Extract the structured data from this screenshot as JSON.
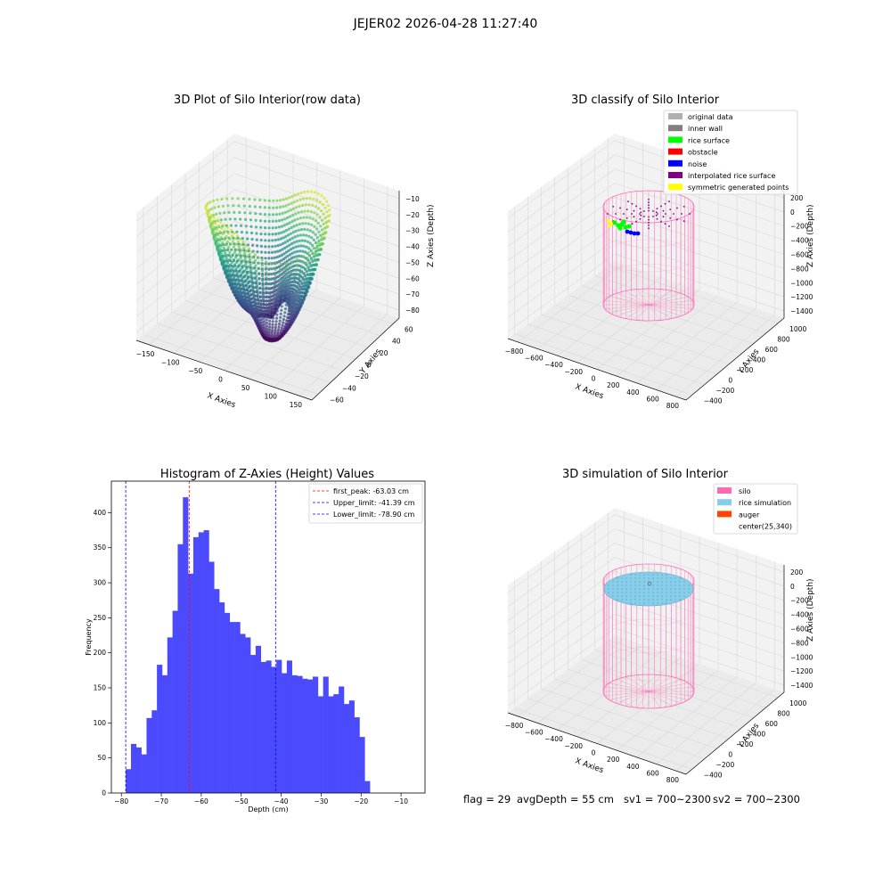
{
  "figure": {
    "suptitle": "JEJER02 2026-04-28 11:27:40",
    "footer": {
      "flag": "flag = 29",
      "avg_depth": "avgDepth = 55 cm",
      "sv1": "sv1 = 700~2300",
      "sv2": "sv2 = 700~2300"
    }
  },
  "colors": {
    "hist_bar": "#4b4bfd",
    "peak_line": "#ff0000",
    "limit_line": "#0000ff",
    "pane": "#f2f2f2",
    "grid": "#d9d9d9",
    "silo": "#ff69b4",
    "rice_sim": "#87ceeb",
    "auger": "#ff4500",
    "original": "#b0b0b0",
    "inner_wall": "#808080",
    "rice_surface": "#00ff00",
    "obstacle": "#ff0000",
    "noise": "#0000ff",
    "interp": "#800080",
    "symmetric": "#ffff00"
  },
  "chart_data": [
    {
      "type": "scatter",
      "projection": "3d",
      "title": "3D Plot of Silo Interior(row data)",
      "xlabel": "X Axies",
      "ylabel": "Y Axies",
      "zlabel": "Z Axies (Depth)",
      "xticks": [
        "−150",
        "−100",
        "−50",
        "0",
        "50",
        "100",
        "150"
      ],
      "yticks": [
        "−60",
        "−40",
        "−20",
        "0",
        "20",
        "40",
        "60"
      ],
      "zticks": [
        "−10",
        "−20",
        "−30",
        "−40",
        "−50",
        "−60",
        "−70",
        "−80"
      ],
      "xlim": [
        -160,
        160
      ],
      "ylim": [
        -65,
        65
      ],
      "zlim": [
        -85,
        -5
      ],
      "colormap": "viridis",
      "color_by": "z"
    },
    {
      "type": "scatter",
      "projection": "3d",
      "title": "3D classify of Silo Interior",
      "xlabel": "X Axies",
      "ylabel": "Y Axies",
      "zlabel": "Z Axies (Depth)",
      "xticks": [
        "−800",
        "−600",
        "−400",
        "−200",
        "0",
        "200",
        "400",
        "600",
        "800"
      ],
      "yticks": [
        "−400",
        "−200",
        "0",
        "200",
        "400",
        "600",
        "800",
        "1000"
      ],
      "zticks": [
        "200",
        "0",
        "−200",
        "−400",
        "−600",
        "−800",
        "−1000",
        "−1200",
        "−1400"
      ],
      "legend_position": "top-right",
      "legend": [
        {
          "label": "original data",
          "color": "#b0b0b0"
        },
        {
          "label": "inner wall",
          "color": "#808080"
        },
        {
          "label": "rice surface",
          "color": "#00ff00"
        },
        {
          "label": "obstacle",
          "color": "#ff0000"
        },
        {
          "label": "noise",
          "color": "#0000ff"
        },
        {
          "label": "interpolated rice surface",
          "color": "#800080"
        },
        {
          "label": "symmetric generated points",
          "color": "#ffff00"
        }
      ]
    },
    {
      "type": "bar",
      "title": "Histogram of Z-Axies (Height) Values",
      "xlabel": "Depth (cm)",
      "ylabel": "Frequency",
      "xlim": [
        -82.5,
        -4
      ],
      "ylim": [
        0,
        445
      ],
      "xticks": [
        -80,
        -70,
        -60,
        -50,
        -40,
        -30,
        -20,
        -10
      ],
      "xtick_labels": [
        "−80",
        "−70",
        "−60",
        "−50",
        "−40",
        "−30",
        "−20",
        "−10"
      ],
      "yticks": [
        0,
        50,
        100,
        150,
        200,
        250,
        300,
        350,
        400
      ],
      "bin_start": -78.9,
      "bin_width": 1.3,
      "values": [
        34,
        70,
        65,
        55,
        107,
        118,
        183,
        168,
        222,
        260,
        355,
        422,
        313,
        365,
        372,
        375,
        330,
        291,
        272,
        257,
        244,
        244,
        227,
        222,
        197,
        210,
        187,
        189,
        180,
        190,
        171,
        189,
        168,
        167,
        163,
        162,
        166,
        138,
        166,
        138,
        141,
        152,
        127,
        132,
        108,
        80,
        17
      ],
      "lines": [
        {
          "label": "first_peak: -63.03 cm",
          "x": -63.03,
          "color": "#ff0000"
        },
        {
          "label": "Upper_limit: -41.39 cm",
          "x": -41.39,
          "color": "#0000ff"
        },
        {
          "label": "Lower_limit: -78.90 cm",
          "x": -78.9,
          "color": "#0000ff"
        }
      ],
      "legend_position": "top-right"
    },
    {
      "type": "scatter",
      "projection": "3d",
      "title": "3D simulation of Silo Interior",
      "xlabel": "X Axies",
      "ylabel": "Y Axies",
      "zlabel": "Z Axies (Depth)",
      "xticks": [
        "−800",
        "−600",
        "−400",
        "−200",
        "0",
        "200",
        "400",
        "600",
        "800"
      ],
      "yticks": [
        "−400",
        "−200",
        "0",
        "200",
        "400",
        "600",
        "800",
        "1000"
      ],
      "zticks": [
        "200",
        "0",
        "−200",
        "−400",
        "−600",
        "−800",
        "−1000",
        "−1200",
        "−1400"
      ],
      "legend_position": "top-right",
      "legend": [
        {
          "label": "silo",
          "color": "#ff69b4"
        },
        {
          "label": "rice simulation",
          "color": "#87ceeb"
        },
        {
          "label": "auger",
          "color": "#ff4500"
        },
        {
          "label": "center(25,340)",
          "color": ""
        }
      ]
    }
  ]
}
